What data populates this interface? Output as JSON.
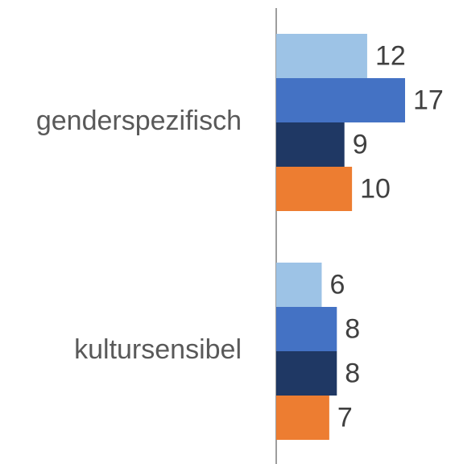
{
  "chart_data": {
    "type": "bar",
    "orientation": "horizontal",
    "categories": [
      "genderspezifisch",
      "kultursensibel"
    ],
    "series": [
      {
        "color": "#9dc3e6",
        "values": [
          12,
          6
        ]
      },
      {
        "color": "#4472c4",
        "values": [
          17,
          8
        ]
      },
      {
        "color": "#1f3864",
        "values": [
          9,
          8
        ]
      },
      {
        "color": "#ed7d31",
        "values": [
          10,
          7
        ]
      }
    ]
  }
}
